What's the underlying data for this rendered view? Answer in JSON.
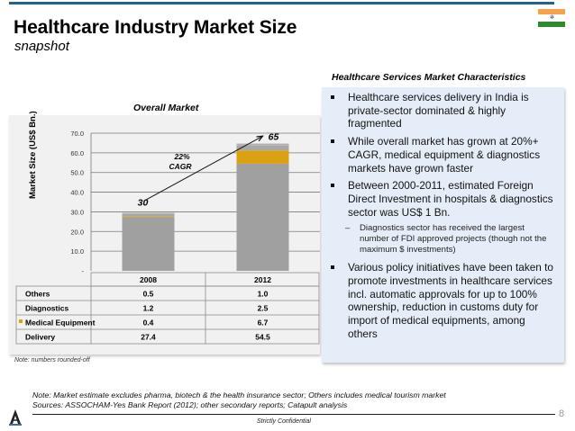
{
  "header": {
    "title": "Healthcare Industry Market Size",
    "subtitle": "snapshot"
  },
  "colors": {
    "accent_rule": "#1f6296",
    "delivery": "#a0a0a0",
    "medical_equipment": "#daa210",
    "diagnostics": "#a8a8a8",
    "others": "#b2b2b2",
    "chart_bg": "#f1f1f1",
    "panel_bg": "#e5eef8"
  },
  "chart_data": {
    "type": "bar",
    "stacked": true,
    "title": "Overall Market",
    "xlabel": "",
    "ylabel": "Market Size (US$ Bn.)",
    "ylim": [
      0,
      70
    ],
    "yticks": [
      "-",
      "10.0",
      "20.0",
      "30.0",
      "40.0",
      "50.0",
      "60.0",
      "70.0"
    ],
    "grid": true,
    "categories": [
      "2008",
      "2012"
    ],
    "totals": [
      "30",
      "65"
    ],
    "series": [
      {
        "name": "Delivery",
        "values": [
          27.4,
          54.5
        ],
        "display": [
          "27.4",
          "54.5"
        ]
      },
      {
        "name": "Medical Equipment",
        "values": [
          0.4,
          6.7
        ],
        "display": [
          "0.4",
          "6.7"
        ]
      },
      {
        "name": "Diagnostics",
        "values": [
          1.2,
          2.5
        ],
        "display": [
          "1.2",
          "2.5"
        ]
      },
      {
        "name": "Others",
        "values": [
          0.5,
          1.0
        ],
        "display": [
          "0.5",
          "1.0"
        ]
      }
    ],
    "table_rows_order": [
      "Others",
      "Diagnostics",
      "Medical Equipment",
      "Delivery"
    ],
    "annotation": {
      "line1": "22%",
      "line2": "CAGR"
    },
    "note": "Note: numbers rounded-off"
  },
  "right_panel": {
    "title": "Healthcare Services Market Characteristics",
    "bullets": [
      {
        "text": "Healthcare services delivery in India is private-sector dominated & highly fragmented"
      },
      {
        "text": "While overall market has grown at 20%+ CAGR, medical equipment & diagnostics markets have grown faster"
      },
      {
        "text": "Between 2000-2011, estimated Foreign Direct Investment in hospitals & diagnostics sector was US$ 1 Bn.",
        "sub": "Diagnostics sector has received the largest number of FDI approved projects (though not the maximum $ investments)"
      },
      {
        "text": "Various policy initiatives have been taken to promote investments in healthcare services incl. automatic approvals for up to 100% ownership, reduction in customs duty for import of medical equipments, among others"
      }
    ]
  },
  "footer": {
    "note": "Note: Market estimate excludes pharma, biotech & the health insurance sector; Others includes medical tourism market",
    "sources": "Sources: ASSOCHAM-Yes Bank Report (2012); other secondary reports; Catapult analysis",
    "confidential": "Strictly Confidential",
    "page_number": "8",
    "sub_dash": "–"
  }
}
